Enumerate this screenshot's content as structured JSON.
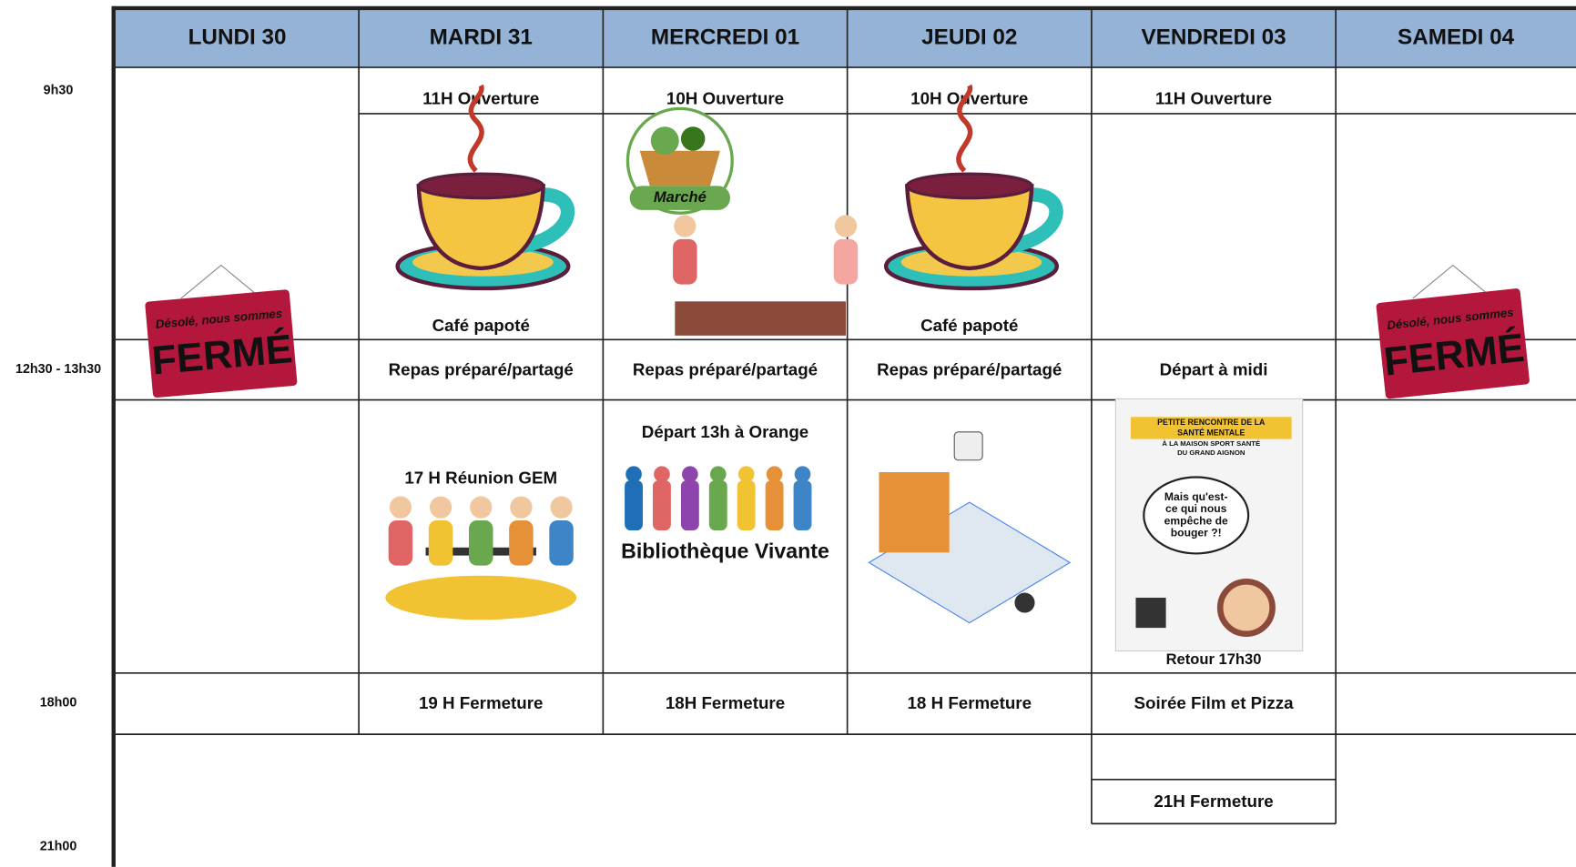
{
  "time_labels": [
    "9h30",
    "12h30 - 13h30",
    "18h00",
    "21h00"
  ],
  "columns": [
    {
      "day": "LUNDI 30",
      "sign_top": "Désolé, nous sommes",
      "sign_main": "FERMÉ"
    },
    {
      "day": "MARDI 31",
      "open": "11H Ouverture",
      "morning": "Café papoté",
      "lunch": "Repas préparé/partagé",
      "afternoon": "17 H Réunion GEM",
      "close": "19 H Fermeture"
    },
    {
      "day": "MERCREDI 01",
      "open": "10H Ouverture",
      "morning_image": "Marché",
      "lunch": "Repas préparé/partagé",
      "afternoon": "Départ 13h à Orange",
      "afternoon_image": "Bibliothèque Vivante",
      "close": "18H Fermeture"
    },
    {
      "day": "JEUDI 02",
      "open": "10H Ouverture",
      "morning": "Café papoté",
      "lunch": "Repas préparé/partagé",
      "close": "18 H Fermeture"
    },
    {
      "day": "VENDREDI 03",
      "open": "11H Ouverture",
      "lunch": "Départ à midi",
      "afternoon_poster": [
        "PETITE RENCONTRE DE LA",
        "SANTÉ MENTALE",
        "À LA MAISON SPORT SANTÉ",
        "DU GRAND AIGNON",
        "Mais qu'est-",
        "ce qui nous",
        "empêche de",
        "bouger ?!"
      ],
      "afternoon_after": "Retour 17h30",
      "evening": "Soirée Film et Pizza",
      "close": "21H Fermeture"
    },
    {
      "day": "SAMEDI 04",
      "sign_top": "Désolé, nous sommes",
      "sign_main": "FERMÉ"
    }
  ]
}
